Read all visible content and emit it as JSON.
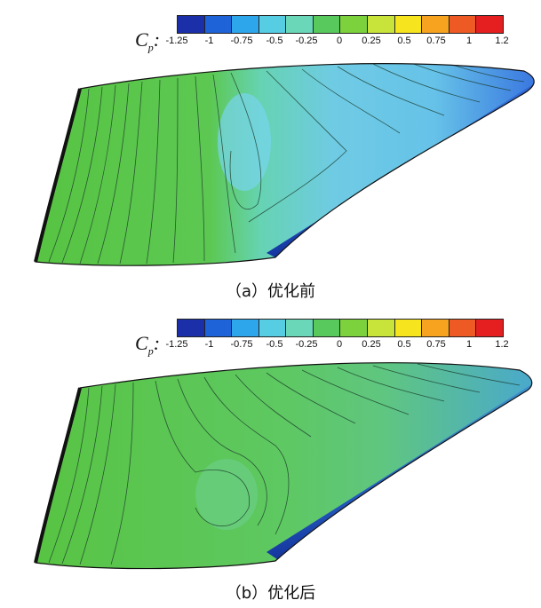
{
  "colorbar": {
    "label_main": "C",
    "label_sub": "p",
    "label_suffix": ":",
    "ticks": [
      "-1.25",
      "-1",
      "-0.75",
      "-0.5",
      "-0.25",
      "0",
      "0.25",
      "0.5",
      "0.75",
      "1",
      "1.2"
    ],
    "colors": [
      "#1a2fa8",
      "#1f63d8",
      "#2ea6ec",
      "#57cde4",
      "#6ad8b8",
      "#58c95c",
      "#7bd23c",
      "#c8e43a",
      "#f6e51e",
      "#f7a320",
      "#ee5a24",
      "#e51f1f"
    ]
  },
  "panels": [
    {
      "id": "a",
      "caption": "（a）优化前",
      "variant": "before"
    },
    {
      "id": "b",
      "caption": "（b）优化后",
      "variant": "after"
    }
  ]
}
